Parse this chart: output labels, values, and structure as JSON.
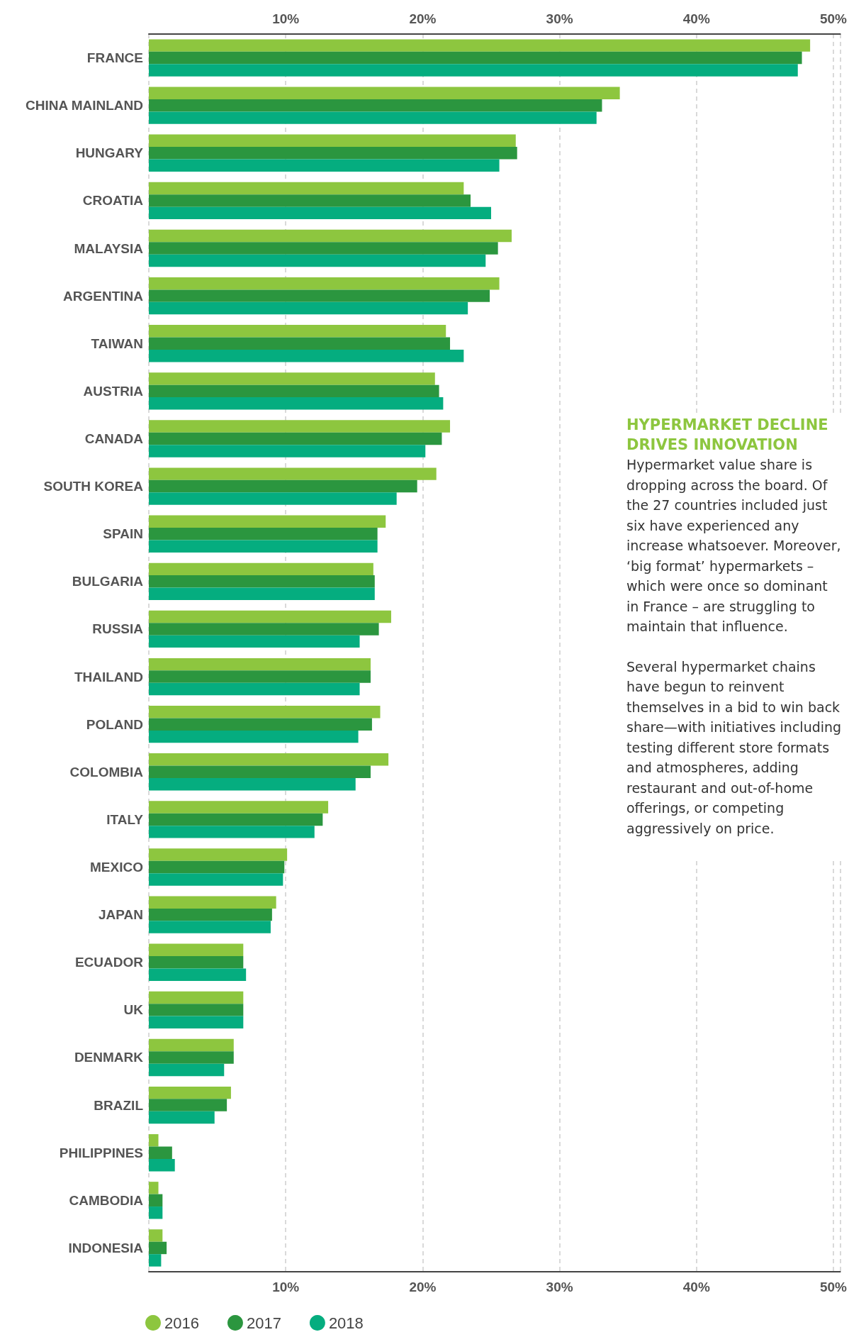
{
  "chart_data": {
    "type": "bar",
    "orientation": "horizontal",
    "categories": [
      "FRANCE",
      "CHINA MAINLAND",
      "HUNGARY",
      "CROATIA",
      "MALAYSIA",
      "ARGENTINA",
      "TAIWAN",
      "AUSTRIA",
      "CANADA",
      "SOUTH KOREA",
      "SPAIN",
      "BULGARIA",
      "RUSSIA",
      "THAILAND",
      "POLAND",
      "COLOMBIA",
      "ITALY",
      "MEXICO",
      "JAPAN",
      "ECUADOR",
      "UK",
      "DENMARK",
      "BRAZIL",
      "PHILIPPINES",
      "CAMBODIA",
      "INDONESIA"
    ],
    "series": [
      {
        "name": "2016",
        "color": "#8dc63f",
        "values": [
          48.3,
          34.4,
          26.8,
          23.0,
          26.5,
          25.6,
          21.7,
          20.9,
          22.0,
          21.0,
          17.3,
          16.4,
          17.7,
          16.2,
          16.9,
          17.5,
          13.1,
          10.1,
          9.3,
          6.9,
          6.9,
          6.2,
          6.0,
          0.7,
          0.7,
          1.0
        ]
      },
      {
        "name": "2017",
        "color": "#2b963f",
        "values": [
          47.7,
          33.1,
          26.9,
          23.5,
          25.5,
          24.9,
          22.0,
          21.2,
          21.4,
          19.6,
          16.7,
          16.5,
          16.8,
          16.2,
          16.3,
          16.2,
          12.7,
          9.9,
          9.0,
          6.9,
          6.9,
          6.2,
          5.7,
          1.7,
          1.0,
          1.3
        ]
      },
      {
        "name": "2018",
        "color": "#05ad7f",
        "values": [
          47.4,
          32.7,
          25.6,
          25.0,
          24.6,
          23.3,
          23.0,
          21.5,
          20.2,
          18.1,
          16.7,
          16.5,
          15.4,
          15.4,
          15.3,
          15.1,
          12.1,
          9.8,
          8.9,
          7.1,
          6.9,
          5.5,
          4.8,
          1.9,
          1.0,
          0.9
        ]
      }
    ],
    "xlim": [
      0,
      50.5
    ],
    "xticks": [
      {
        "value": 10,
        "label": "10%"
      },
      {
        "value": 20,
        "label": "20%"
      },
      {
        "value": 30,
        "label": "30%"
      },
      {
        "value": 40,
        "label": "40%"
      },
      {
        "value": 50,
        "label": "50%"
      }
    ],
    "x2lim": [
      0,
      50.5
    ],
    "x2ticks": [
      {
        "value": 10,
        "label": "10%"
      },
      {
        "value": 20,
        "label": "20%"
      },
      {
        "value": 30,
        "label": "30%"
      },
      {
        "value": 40,
        "label": "40%"
      },
      {
        "value": 50,
        "label": "50%"
      }
    ],
    "grid": "x",
    "legend": "bottom left",
    "annotations": [
      "HYPERMARKET DECLINE DRIVES INNOVATION",
      "Hypermarket value share is dropping across the board. Of the 27 countries included just six have experienced any increase whatsoever. Moreover, ‘big format’ hypermarkets – which were once so dominant in France – are struggling to maintain that influence.",
      "Several hypermarket chains have begun to reinvent themselves in a bid to win back share—with initiatives including testing different store formats and atmospheres, adding restaurant and out-of-home offerings, or competing aggressively on price."
    ]
  }
}
